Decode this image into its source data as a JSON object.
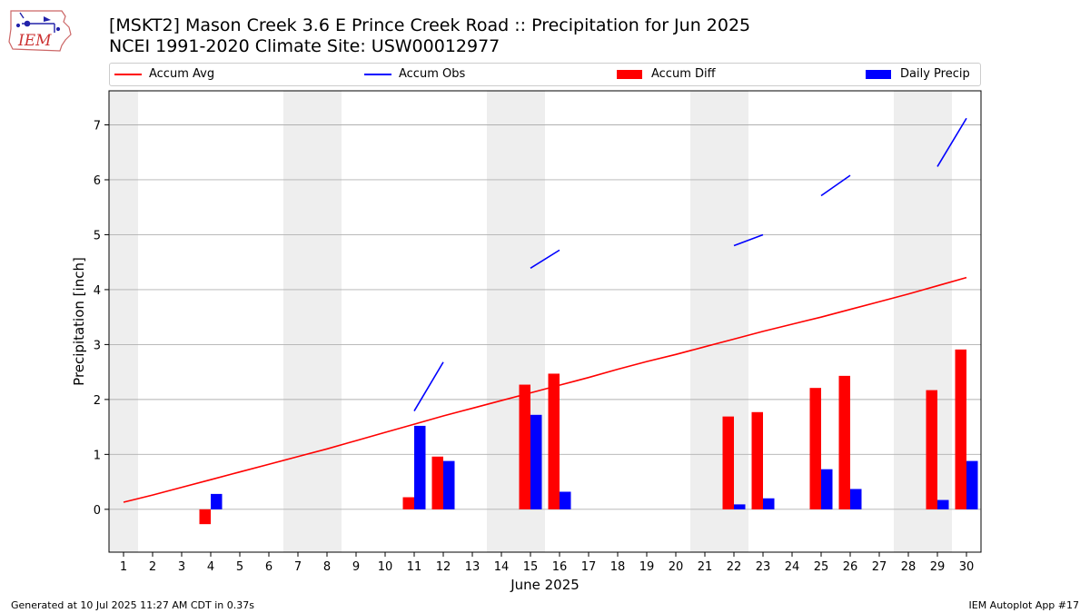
{
  "header": {
    "title_line1": "[MSKT2] Mason Creek 3.6 E Prince Creek Road :: Precipitation for Jun 2025",
    "title_line2": "NCEI 1991-2020 Climate Site: USW00012977"
  },
  "logo": {
    "text": "IEM",
    "icon": "iem-iowa-map-logo",
    "color": "#cc3333"
  },
  "legend": {
    "items": [
      {
        "label": "Accum Avg",
        "kind": "line",
        "color": "#ff0000"
      },
      {
        "label": "Accum Obs",
        "kind": "line",
        "color": "#0000ff"
      },
      {
        "label": "Accum Diff",
        "kind": "box",
        "color": "#ff0000"
      },
      {
        "label": "Daily Precip",
        "kind": "box",
        "color": "#0000ff"
      }
    ]
  },
  "footer": {
    "left": "Generated at 10 Jul 2025 11:27 AM CDT in 0.37s",
    "right": "IEM Autoplot App #17"
  },
  "chart_data": {
    "type": "bar",
    "xlabel": "June 2025",
    "ylabel": "Precipitation [inch]",
    "xlim": [
      0.5,
      30.5
    ],
    "ylim": [
      -0.78,
      7.62
    ],
    "yticks": [
      0,
      1,
      2,
      3,
      4,
      5,
      6,
      7
    ],
    "days": [
      1,
      2,
      3,
      4,
      5,
      6,
      7,
      8,
      9,
      10,
      11,
      12,
      13,
      14,
      15,
      16,
      17,
      18,
      19,
      20,
      21,
      22,
      23,
      24,
      25,
      26,
      27,
      28,
      29,
      30
    ],
    "weekend_days": [
      1,
      7,
      8,
      14,
      15,
      21,
      22,
      28,
      29
    ],
    "grid": "horizontal",
    "legend_position": "top",
    "accum_avg": [
      0.13,
      0.26,
      0.4,
      0.54,
      0.68,
      0.82,
      0.96,
      1.1,
      1.25,
      1.4,
      1.55,
      1.7,
      1.84,
      1.98,
      2.12,
      2.26,
      2.4,
      2.55,
      2.69,
      2.82,
      2.96,
      3.1,
      3.24,
      3.37,
      3.5,
      3.64,
      3.78,
      3.92,
      4.07,
      4.22
    ],
    "accum_obs_segments": [
      {
        "x": [
          11,
          12
        ],
        "y": [
          1.79,
          2.68
        ]
      },
      {
        "x": [
          15,
          16
        ],
        "y": [
          4.39,
          4.72
        ]
      },
      {
        "x": [
          22,
          23
        ],
        "y": [
          4.8,
          5.0
        ]
      },
      {
        "x": [
          25,
          26
        ],
        "y": [
          5.71,
          6.08
        ]
      },
      {
        "x": [
          29,
          30
        ],
        "y": [
          6.24,
          7.12
        ]
      }
    ],
    "accum_diff": [
      {
        "day": 4,
        "value": -0.27
      },
      {
        "day": 11,
        "value": 0.22
      },
      {
        "day": 12,
        "value": 0.96
      },
      {
        "day": 15,
        "value": 2.27
      },
      {
        "day": 16,
        "value": 2.47
      },
      {
        "day": 22,
        "value": 1.69
      },
      {
        "day": 23,
        "value": 1.77
      },
      {
        "day": 25,
        "value": 2.21
      },
      {
        "day": 26,
        "value": 2.43
      },
      {
        "day": 29,
        "value": 2.17
      },
      {
        "day": 30,
        "value": 2.91
      }
    ],
    "daily_precip": [
      {
        "day": 4,
        "value": 0.28
      },
      {
        "day": 11,
        "value": 1.52
      },
      {
        "day": 12,
        "value": 0.88
      },
      {
        "day": 15,
        "value": 1.72
      },
      {
        "day": 16,
        "value": 0.32
      },
      {
        "day": 22,
        "value": 0.09
      },
      {
        "day": 23,
        "value": 0.2
      },
      {
        "day": 25,
        "value": 0.73
      },
      {
        "day": 26,
        "value": 0.37
      },
      {
        "day": 29,
        "value": 0.17
      },
      {
        "day": 30,
        "value": 0.88
      }
    ],
    "colors": {
      "accum_avg": "#ff0000",
      "accum_obs": "#0000ff",
      "accum_diff": "#ff0000",
      "daily_precip": "#0000ff",
      "weekend_shade": "#eeeeee",
      "grid": "#b0b0b0"
    }
  }
}
